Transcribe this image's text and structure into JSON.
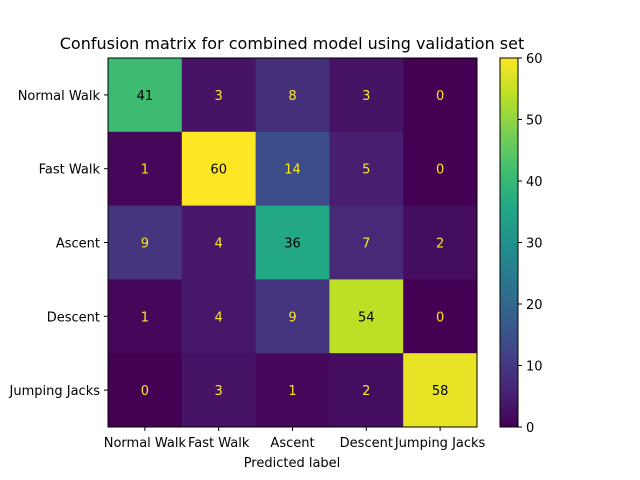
{
  "chart_data": {
    "type": "heatmap",
    "title": "Confusion matrix for combined model using validation set",
    "xlabel": "Predicted label",
    "ylabel": "",
    "x_categories": [
      "Normal Walk",
      "Fast Walk",
      "Ascent",
      "Descent",
      "Jumping Jacks"
    ],
    "y_categories": [
      "Normal Walk",
      "Fast Walk",
      "Ascent",
      "Descent",
      "Jumping Jacks"
    ],
    "values": [
      [
        41,
        3,
        8,
        3,
        0
      ],
      [
        1,
        60,
        14,
        5,
        0
      ],
      [
        9,
        4,
        36,
        7,
        2
      ],
      [
        1,
        4,
        9,
        54,
        0
      ],
      [
        0,
        3,
        1,
        2,
        58
      ]
    ],
    "colormap": "viridis",
    "colorbar": {
      "min": 0,
      "max": 60,
      "ticks": [
        0,
        10,
        20,
        30,
        40,
        50,
        60
      ]
    },
    "grid": false
  }
}
